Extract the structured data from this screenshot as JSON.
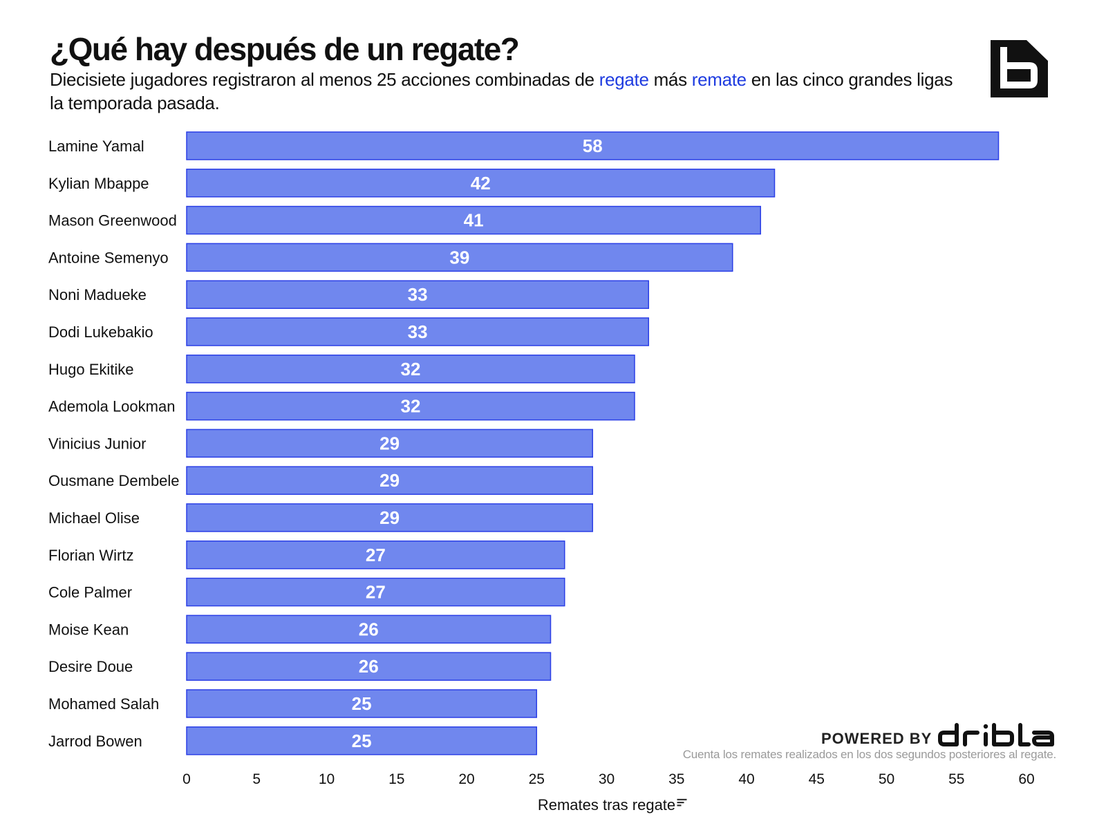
{
  "header": {
    "title": "¿Qué hay después de un regate?",
    "subtitle_part1": "Diecisiete jugadores registraron al menos 25 acciones combinadas de ",
    "subtitle_hl1": "regate",
    "subtitle_part2": " más ",
    "subtitle_hl2": "remate",
    "subtitle_part3": "  en las cinco grandes ligas la temporada pasada."
  },
  "logo": {
    "icon": "b-logo-icon",
    "color": "#111111"
  },
  "footer": {
    "powered_by": "POWERED BY",
    "brand": "driblab",
    "note": "Cuenta los remates realizados en los dos segundos posteriores al regate."
  },
  "colors": {
    "bar_fill": "#7087ee",
    "bar_stroke": "#2b3fe6",
    "highlight": "#1f3ce0"
  },
  "chart_data": {
    "type": "bar",
    "orientation": "horizontal",
    "categories": [
      "Lamine Yamal",
      "Kylian Mbappe",
      "Mason Greenwood",
      "Antoine Semenyo",
      "Noni Madueke",
      "Dodi Lukebakio",
      "Hugo Ekitike",
      "Ademola Lookman",
      "Vinicius Junior",
      "Ousmane Dembele",
      "Michael Olise",
      "Florian Wirtz",
      "Cole Palmer",
      "Moise Kean",
      "Desire Doue",
      "Mohamed Salah",
      "Jarrod Bowen"
    ],
    "values": [
      58,
      42,
      41,
      39,
      33,
      33,
      32,
      32,
      29,
      29,
      29,
      27,
      27,
      26,
      26,
      25,
      25
    ],
    "xlabel": "Remates tras regate",
    "xlim": [
      0,
      60
    ],
    "xticks": [
      0,
      5,
      10,
      15,
      20,
      25,
      30,
      35,
      40,
      45,
      50,
      55,
      60
    ],
    "data_labels": true,
    "grid": false,
    "legend": "none"
  }
}
